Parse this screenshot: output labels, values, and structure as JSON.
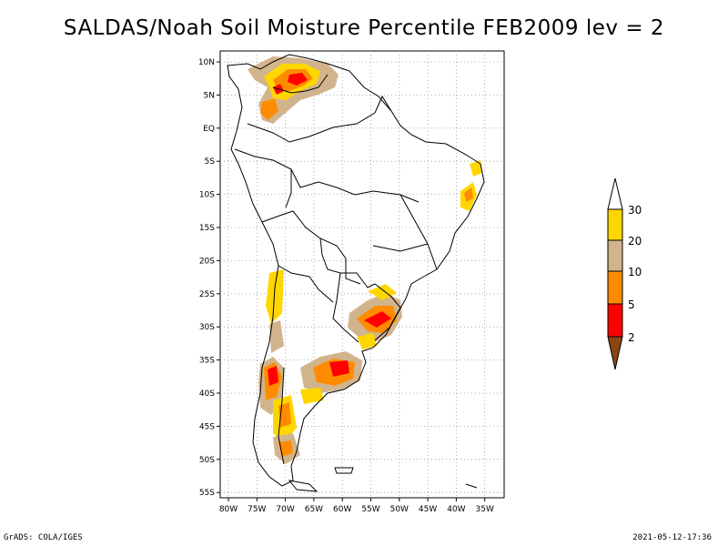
{
  "title": "SALDAS/Noah Soil Moisture Percentile FEB2009 lev = 2",
  "lat_ticks": [
    "10N",
    "5N",
    "EQ",
    "5S",
    "10S",
    "15S",
    "20S",
    "25S",
    "30S",
    "35S",
    "40S",
    "45S",
    "50S",
    "55S"
  ],
  "lon_ticks": [
    "80W",
    "75W",
    "70W",
    "65W",
    "60W",
    "55W",
    "50W",
    "45W",
    "40W",
    "35W"
  ],
  "legend": {
    "labels": [
      "2",
      "5",
      "10",
      "20",
      "30"
    ],
    "colors": {
      "below_2": "#8B4513",
      "2_5": "#FF0000",
      "5_10": "#FF8C00",
      "10_20": "#D2B48C",
      "20_30": "#FFD700",
      "above_30": "#FFFFFF"
    }
  },
  "footer": {
    "left": "GrADS: COLA/IGES",
    "right": "2021-05-12-17:36"
  }
}
